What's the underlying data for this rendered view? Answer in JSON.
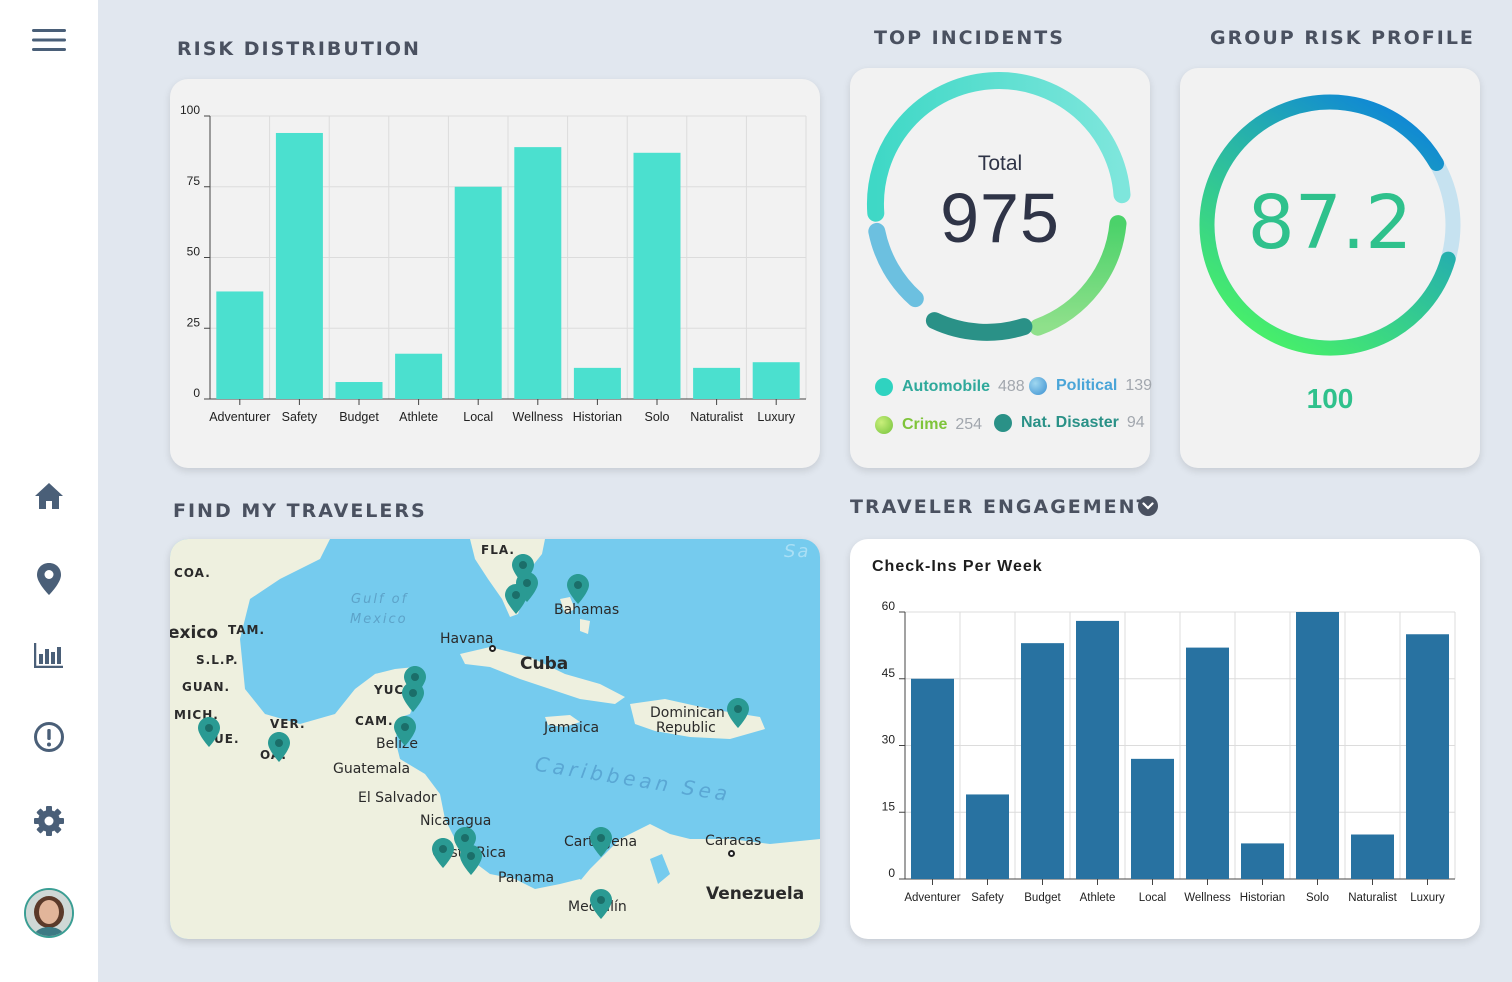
{
  "sections": {
    "risk_distribution": "RISK DISTRIBUTION",
    "top_incidents": "TOP INCIDENTS",
    "group_risk_profile": "GROUP RISK PROFILE",
    "find_my_travelers": "FIND MY TRAVELERS",
    "traveler_engagement": "TRAVELER ENGAGEMENT"
  },
  "sidebar": {
    "items": [
      {
        "icon": "menu-icon"
      },
      {
        "icon": "home-icon"
      },
      {
        "icon": "location-pin-icon"
      },
      {
        "icon": "bar-chart-icon"
      },
      {
        "icon": "alert-icon"
      },
      {
        "icon": "gear-icon"
      },
      {
        "icon": "avatar"
      }
    ]
  },
  "top_incidents": {
    "total_label": "Total",
    "total_value": "975",
    "legend": [
      {
        "label": "Automobile",
        "count": "488",
        "color": "#2fd3c0"
      },
      {
        "label": "Political",
        "count": "139",
        "color": "#4aa5d8"
      },
      {
        "label": "Crime",
        "count": "254",
        "color": "#8bd342"
      },
      {
        "label": "Nat. Disaster",
        "count": "94",
        "color": "#2a9187"
      }
    ]
  },
  "group_risk": {
    "value": "87.2",
    "max": "100",
    "level": 0.872
  },
  "map": {
    "labels": {
      "fla": "FLA.",
      "coa": "COA.",
      "mexico": "exico",
      "tam": "TAM.",
      "slp": "S.L.P.",
      "guan": "GUAN.",
      "mich": "MICH.",
      "ue": "UE.",
      "ver": "VER.",
      "oa": "OA.",
      "cam": "CAM.",
      "yuc": "YUC",
      "gulf": "Gulf of",
      "mexico_water": "Mexico",
      "havana": "Havana",
      "cuba": "Cuba",
      "bahamas": "Bahamas",
      "jamaica": "Jamaica",
      "dominican": "Dominican",
      "republic": "Republic",
      "belize": "Belize",
      "guatemala": "Guatemala",
      "el_salvador": "El Salvador",
      "nicaragua": "Nicaragua",
      "costa_rica": "Costa Rica",
      "panama": "Panama",
      "caribbean_sea": "Caribbean Sea",
      "cartagena": "Cartagena",
      "caracas": "Caracas",
      "venezuela": "Venezuela",
      "medellin": "Medellín",
      "sa": "Sa"
    }
  },
  "colors": {
    "risk_bar": "#4be0cf",
    "engagement_bar": "#2872a1",
    "pin": "#2a9a93",
    "ocean": "#75cbee",
    "land": "#eef0df"
  },
  "chart_data": [
    {
      "type": "bar",
      "title": "",
      "categories": [
        "Adventurer",
        "Safety",
        "Budget",
        "Athlete",
        "Local",
        "Wellness",
        "Historian",
        "Solo",
        "Naturalist",
        "Luxury"
      ],
      "values": [
        38,
        94,
        6,
        16,
        75,
        89,
        11,
        87,
        11,
        13
      ],
      "yticks": [
        0,
        25,
        50,
        75,
        100
      ],
      "ylim": [
        0,
        100
      ],
      "grid": true
    },
    {
      "type": "bar",
      "title": "Check-Ins Per Week",
      "categories": [
        "Adventurer",
        "Safety",
        "Budget",
        "Athlete",
        "Local",
        "Wellness",
        "Historian",
        "Solo",
        "Naturalist",
        "Luxury"
      ],
      "values": [
        45,
        19,
        53,
        58,
        27,
        52,
        8,
        60,
        10,
        55
      ],
      "yticks": [
        0,
        15,
        30,
        45,
        60
      ],
      "ylim": [
        0,
        60
      ],
      "grid": true
    }
  ]
}
